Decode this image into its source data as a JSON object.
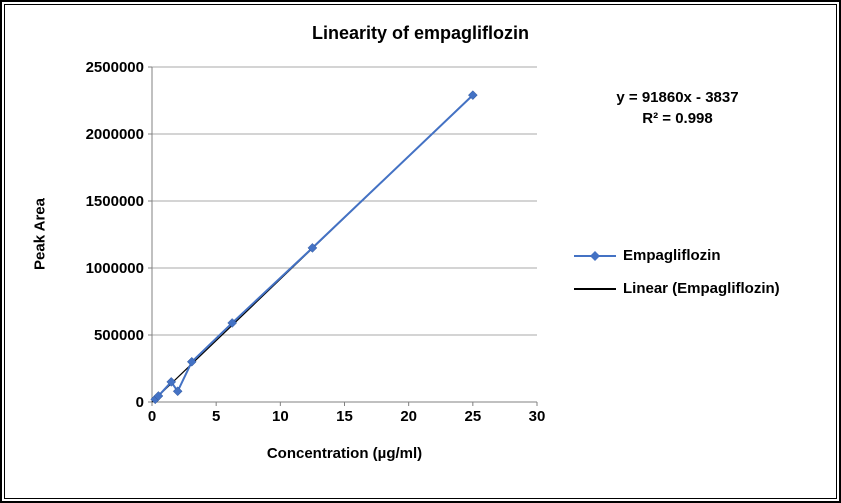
{
  "annotation": {
    "equation": "y = 91860x - 3837",
    "r_squared": "R² = 0.998"
  },
  "legend": {
    "position": "right",
    "items": [
      {
        "label": "Empagliflozin",
        "marker": "diamond-line",
        "color": "#4472C4"
      },
      {
        "label": "Linear (Empagliflozin)",
        "marker": "line",
        "color": "#000000"
      }
    ]
  },
  "chart_data": {
    "type": "scatter",
    "title": "Linearity of empagliflozin",
    "xlabel": "Concentration (µg/ml)",
    "ylabel": "Peak Area",
    "xlim": [
      0,
      30
    ],
    "ylim": [
      0,
      2500000
    ],
    "xticks": [
      0,
      5,
      10,
      15,
      20,
      25,
      30
    ],
    "yticks": [
      0,
      500000,
      1000000,
      1500000,
      2000000,
      2500000
    ],
    "grid": true,
    "legend_position": "right",
    "series": [
      {
        "name": "Empagliflozin",
        "color": "#4472C4",
        "marker": "diamond",
        "x": [
          0.25,
          0.5,
          1.5,
          2,
          3.1,
          6.25,
          12.5,
          25
        ],
        "y": [
          20000,
          45000,
          150000,
          80000,
          300000,
          590000,
          1150000,
          2290000
        ]
      }
    ],
    "trendline": {
      "name": "Linear (Empagliflozin)",
      "slope": 91860,
      "intercept": -3837,
      "r_squared": 0.998,
      "color": "#000000",
      "x_range": [
        0,
        25
      ]
    },
    "colors": {
      "gridline": "#A9A9A9",
      "axis": "#808080",
      "text": "#000000"
    }
  }
}
